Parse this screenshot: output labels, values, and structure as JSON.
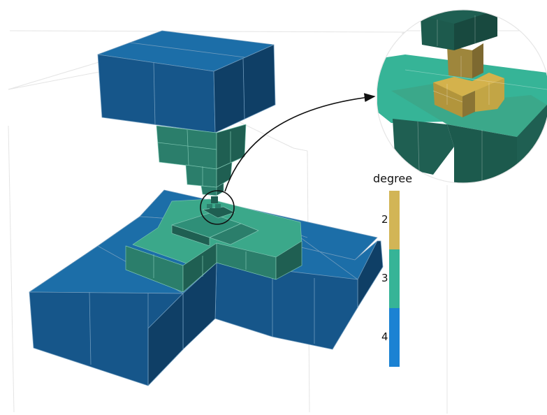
{
  "legend": {
    "title": "degree",
    "entries": [
      {
        "label": "2",
        "color": "#d2b556"
      },
      {
        "label": "3",
        "color": "#36b497"
      },
      {
        "label": "4",
        "color": "#1b82d3"
      }
    ]
  },
  "colors": {
    "blue_top": "#1c6ea8",
    "blue_side_light": "#16568a",
    "blue_side_dark": "#0f3f66",
    "teal_top": "#3ba88a",
    "teal_side_light": "#2b7e6b",
    "teal_side_dark": "#1f5f52",
    "gold_top": "#d4b24c",
    "gold_side_light": "#b2953c",
    "gold_side_dark": "#7d6930",
    "grid": "#e2e2e2",
    "edge": "#7fa6c0"
  }
}
